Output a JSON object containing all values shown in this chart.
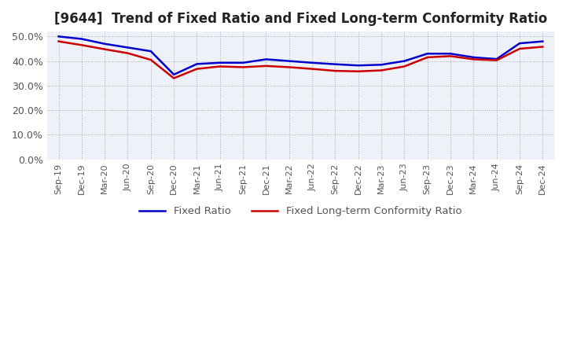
{
  "title": "[9644]  Trend of Fixed Ratio and Fixed Long-term Conformity Ratio",
  "x_labels": [
    "Sep-19",
    "Dec-19",
    "Mar-20",
    "Jun-20",
    "Sep-20",
    "Dec-20",
    "Mar-21",
    "Jun-21",
    "Sep-21",
    "Dec-21",
    "Mar-22",
    "Jun-22",
    "Sep-22",
    "Dec-22",
    "Mar-23",
    "Jun-23",
    "Sep-23",
    "Dec-23",
    "Mar-24",
    "Jun-24",
    "Sep-24",
    "Dec-24"
  ],
  "fixed_ratio": [
    0.5,
    0.49,
    0.47,
    0.455,
    0.44,
    0.345,
    0.388,
    0.393,
    0.393,
    0.407,
    0.4,
    0.393,
    0.387,
    0.382,
    0.385,
    0.4,
    0.43,
    0.43,
    0.415,
    0.408,
    0.472,
    0.48
  ],
  "fixed_lt_ratio": [
    0.48,
    0.465,
    0.448,
    0.432,
    0.405,
    0.33,
    0.368,
    0.378,
    0.375,
    0.38,
    0.375,
    0.368,
    0.36,
    0.358,
    0.362,
    0.378,
    0.415,
    0.42,
    0.407,
    0.403,
    0.45,
    0.458
  ],
  "fixed_ratio_color": "#0000cc",
  "fixed_lt_ratio_color": "#cc0000",
  "ylim": [
    0.0,
    0.52
  ],
  "yticks": [
    0.0,
    0.1,
    0.2,
    0.3,
    0.4,
    0.5
  ],
  "background_color": "#ffffff",
  "plot_bg_color": "#eef2f8",
  "grid_color": "#aaaaaa",
  "title_fontsize": 12,
  "legend_labels": [
    "Fixed Ratio",
    "Fixed Long-term Conformity Ratio"
  ]
}
